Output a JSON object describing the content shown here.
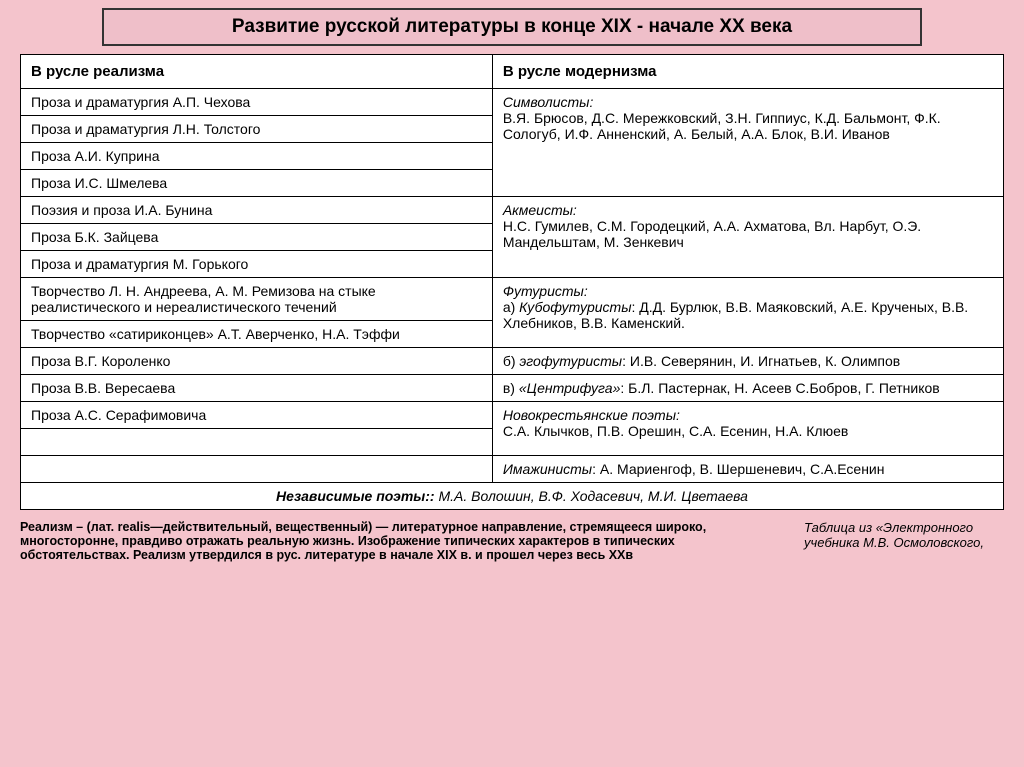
{
  "title": "Развитие русской литературы в конце XIX  - начале XX  века",
  "headers": {
    "left": "В русле реализма",
    "right": "В русле модернизма"
  },
  "left_rows": {
    "r1": "Проза и драматургия А.П. Чехова",
    "r2": "Проза и драматургия Л.Н. Толстого",
    "r3": "Проза А.И. Куприна",
    "r4": "Проза И.С. Шмелева",
    "r5": "Поэзия и проза И.А. Бунина",
    "r6": "Проза Б.К. Зайцева",
    "r7": "Проза и драматургия М. Горького",
    "r8": "Творчество Л. Н. Андреева, А. М. Ремизова на стыке реалистического и нереалистического течений",
    "r9": "Творчество «сатириконцев» А.Т. Аверченко, Н.А. Тэффи",
    "r10": "Проза В.Г. Короленко",
    "r11": "Проза В.В. Вересаева",
    "r12": "Проза А.С. Серафимовича",
    "r13": "",
    "r14": ""
  },
  "right_groups": {
    "g1_title": "Символисты:",
    "g1_body": "В.Я. Брюсов, Д.С. Мережковский, З.Н. Гиппиус, К.Д. Бальмонт, Ф.К. Сологуб, И.Ф. Анненский, А. Белый, А.А. Блок, В.И. Иванов",
    "g2_title": "Акмеисты:",
    "g2_body": "Н.С. Гумилев, С.М. Городецкий, А.А. Ахматова, Вл. Нарбут, О.Э. Мандельштам, М. Зенкевич",
    "g3_title": "Футуристы:",
    "g3a_label": "а) ",
    "g3a_name": "Кубофутуристы",
    "g3a_body": ": Д.Д. Бурлюк, В.В. Маяковский, А.Е. Крученых, В.В. Хлебников,  В.В. Каменский.",
    "g3b_label": "б) ",
    "g3b_name": "эгофутуристы",
    "g3b_body": ": И.В. Северянин, И. Игнатьев, К. Олимпов",
    "g3c_label": "в) ",
    "g3c_name": "«Центрифуга»",
    "g3c_body": ": Б.Л. Пастернак, Н. Асеев С.Бобров, Г. Петников",
    "g4_title": "Новокрестьянские поэты:",
    "g4_body": "С.А. Клычков, П.В. Орешин, С.А. Есенин, Н.А. Клюев",
    "g5_title": "Имажинисты",
    "g5_body": ": А. Мариенгоф, В. Шершеневич, С.А.Есенин"
  },
  "footer_label": "Независимые поэты::",
  "footer_body": "  М.А. Волошин, В.Ф. Ходасевич, М.И. Цветаева",
  "definition": "Реализм – (лат. realis—действительный, вещественный) —  литературное направление, стремящееся широко, многосторонне, правдиво  отражать реальную жизнь. Изображение типических характеров в типических обстоятельствах. Реализм утвердился в рус. литературе в начале XIX в. и прошел через весь XXв",
  "source": "Таблица из «Электронного учебника М.В. Осмоловского,"
}
